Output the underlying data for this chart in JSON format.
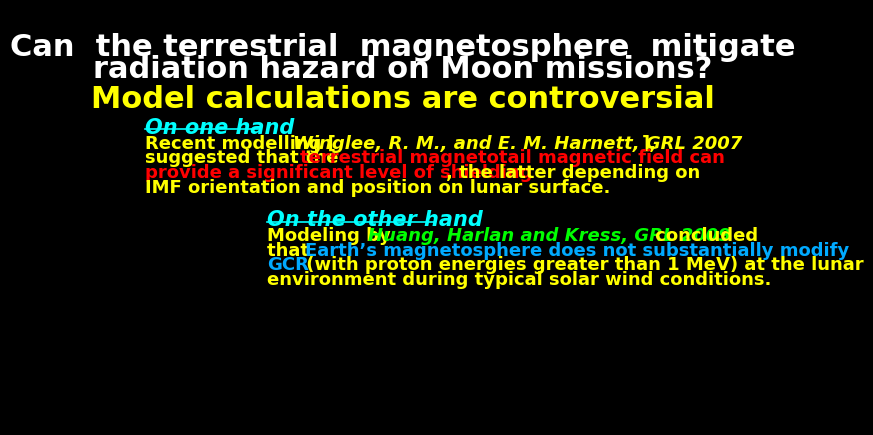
{
  "background_color": "#000000",
  "title_line1": "Can  the terrestrial  magnetosphere  mitigate",
  "title_line2": "radiation hazard on Moon missions?",
  "title_color": "#ffffff",
  "title_fontsize": 22,
  "subtitle": "Model calculations are controversial",
  "subtitle_color": "#ffff00",
  "subtitle_fontsize": 22,
  "section1_header": "On one hand",
  "section1_header_color": "#00ffff",
  "section1_header_fontsize": 15,
  "section2_header": "On the other hand",
  "section2_header_color": "#00ffff",
  "section2_header_fontsize": 15,
  "para1_fontsize": 13,
  "para2_fontsize": 13,
  "para1_lines": [
    [
      {
        "text": "Recent modelling [",
        "color": "#ffff00",
        "bold": true,
        "italic": false
      },
      {
        "text": "Winglee, R. M., and E. M. Harnett, GRL 2007",
        "color": "#ffff00",
        "bold": true,
        "italic": true
      },
      {
        "text": "],",
        "color": "#ffff00",
        "bold": true,
        "italic": false
      }
    ],
    [
      {
        "text": "suggested that the ",
        "color": "#ffff00",
        "bold": true,
        "italic": false
      },
      {
        "text": "terrestrial magnetotail magnetic field can",
        "color": "#ff0000",
        "bold": true,
        "italic": false
      }
    ],
    [
      {
        "text": "provide a significant level of shielding",
        "color": "#ff0000",
        "bold": true,
        "italic": false
      },
      {
        "text": ", the latter depending on",
        "color": "#ffff00",
        "bold": true,
        "italic": false
      }
    ],
    [
      {
        "text": "IMF orientation and position on lunar surface.",
        "color": "#ffff00",
        "bold": true,
        "italic": false
      }
    ]
  ],
  "para2_lines": [
    [
      {
        "text": "Modeling by ",
        "color": "#ffff00",
        "bold": true,
        "italic": false
      },
      {
        "text": "Huang, Harlan and Kress, GRL 2009",
        "color": "#00ff00",
        "bold": true,
        "italic": true
      },
      {
        "text": " concluded",
        "color": "#ffff00",
        "bold": true,
        "italic": false
      }
    ],
    [
      {
        "text": "that ",
        "color": "#ffff00",
        "bold": true,
        "italic": false
      },
      {
        "text": "Earth’s magnetosphere does not substantially modify",
        "color": "#00aaff",
        "bold": true,
        "italic": false
      }
    ],
    [
      {
        "text": "GCR",
        "color": "#00aaff",
        "bold": true,
        "italic": false
      },
      {
        "text": " (with proton energies greater than 1 MeV) at the lunar",
        "color": "#ffff00",
        "bold": true,
        "italic": false
      }
    ],
    [
      {
        "text": "environment during typical solar wind conditions.",
        "color": "#ffff00",
        "bold": true,
        "italic": false
      }
    ]
  ]
}
